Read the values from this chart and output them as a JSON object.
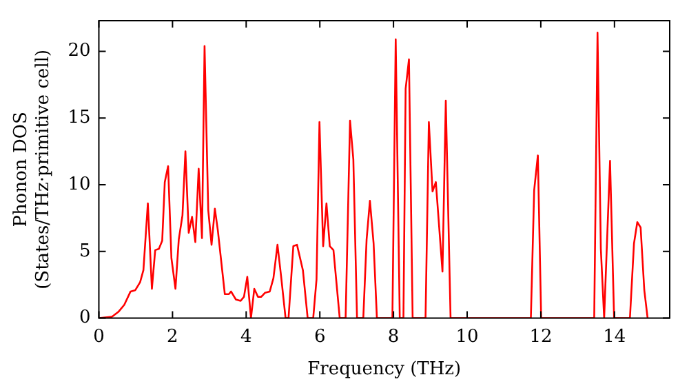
{
  "chart_data": {
    "type": "line",
    "xlabel": "Frequency (THz)",
    "ylabel": "Phonon DOS\n(States/THz·primitive cell)",
    "xlim": [
      0,
      15.5
    ],
    "xticks": [
      0,
      2,
      4,
      6,
      8,
      10,
      12,
      14
    ],
    "ylim": [
      0,
      22.3
    ],
    "yticks": [
      0,
      5,
      10,
      15,
      20
    ],
    "grid": false,
    "legend": false,
    "marker": "none",
    "line_style": "solid",
    "series": [
      {
        "color": "#ff0000",
        "x": [
          0,
          0.35,
          0.54,
          0.69,
          0.86,
          0.99,
          1.12,
          1.21,
          1.33,
          1.44,
          1.53,
          1.63,
          1.72,
          1.79,
          1.88,
          1.97,
          2.08,
          2.17,
          2.27,
          2.35,
          2.44,
          2.53,
          2.62,
          2.71,
          2.8,
          2.87,
          2.97,
          3.06,
          3.15,
          3.23,
          3.42,
          3.53,
          3.59,
          3.72,
          3.85,
          3.94,
          4.03,
          4.13,
          4.22,
          4.32,
          4.41,
          4.51,
          4.64,
          4.74,
          4.85,
          4.95,
          5.07,
          5.15,
          5.28,
          5.38,
          5.54,
          5.67,
          5.82,
          5.91,
          5.99,
          6.09,
          6.18,
          6.27,
          6.37,
          6.54,
          6.7,
          6.82,
          6.91,
          7.01,
          7.18,
          7.27,
          7.36,
          7.46,
          7.55,
          7.97,
          8.06,
          8.17,
          8.27,
          8.33,
          8.42,
          8.52,
          8.87,
          8.96,
          9.06,
          9.15,
          9.33,
          9.42,
          9.55,
          11.73,
          11.82,
          11.92,
          12.01,
          13.45,
          13.54,
          13.63,
          13.72,
          13.88,
          13.99,
          14.42,
          14.53,
          14.62,
          14.71,
          14.81,
          14.9
        ],
        "values": [
          0,
          0.1,
          0.5,
          1,
          2,
          2.1,
          2.7,
          3.6,
          8.6,
          2.2,
          5.1,
          5.2,
          5.8,
          10.2,
          11.4,
          4.5,
          2.2,
          5.9,
          7.7,
          12.5,
          6.4,
          7.6,
          5.7,
          11.2,
          6,
          20.4,
          8.1,
          5.5,
          8.2,
          6.6,
          1.8,
          1.8,
          2,
          1.4,
          1.3,
          1.6,
          3.1,
          0,
          2.2,
          1.6,
          1.6,
          1.9,
          2,
          3,
          5.5,
          3.1,
          0,
          0,
          5.4,
          5.5,
          3.6,
          0,
          0,
          2.9,
          14.7,
          5.4,
          8.6,
          5.4,
          5.1,
          0,
          0,
          14.8,
          11.9,
          0,
          0,
          5.9,
          8.8,
          5.6,
          0,
          0,
          20.9,
          0,
          0,
          17.2,
          19.4,
          0,
          0,
          14.7,
          9.5,
          10.2,
          3.5,
          16.3,
          0,
          0,
          9.6,
          12.2,
          0,
          0,
          21.4,
          5.2,
          0,
          11.8,
          0,
          0,
          5.6,
          7.2,
          6.8,
          2.1,
          0
        ]
      }
    ]
  }
}
